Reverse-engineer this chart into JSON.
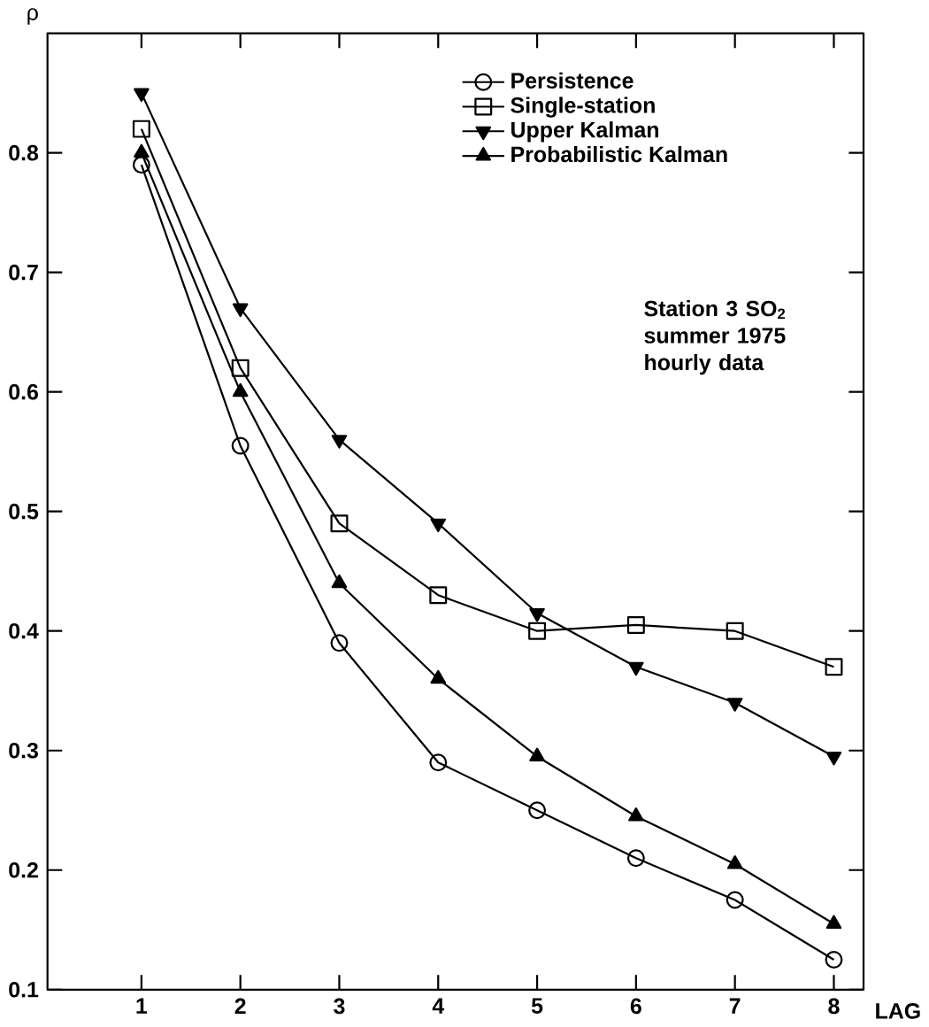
{
  "chart_data": {
    "type": "line",
    "xlabel": "LAG",
    "ylabel": "ρ",
    "x": [
      1,
      2,
      3,
      4,
      5,
      6,
      7,
      8
    ],
    "series": [
      {
        "name": "Persistence",
        "color": "#000000",
        "marker": "circle",
        "values": [
          0.79,
          0.555,
          0.39,
          0.29,
          0.25,
          0.21,
          0.175,
          0.125
        ]
      },
      {
        "name": "Single-station",
        "color": "#000000",
        "marker": "square",
        "values": [
          0.82,
          0.62,
          0.49,
          0.43,
          0.4,
          0.405,
          0.4,
          0.37
        ]
      },
      {
        "name": "Upper Kalman",
        "color": "#000000",
        "marker": "triangle down",
        "values": [
          0.85,
          0.67,
          0.56,
          0.49,
          0.415,
          0.37,
          0.34,
          0.295
        ]
      },
      {
        "name": "Probabilistic Kalman",
        "color": "#000000",
        "marker": "triangle",
        "values": [
          0.8,
          0.6,
          0.44,
          0.36,
          0.295,
          0.245,
          0.205,
          0.155
        ]
      }
    ],
    "xlim": [
      0.05,
      8.3
    ],
    "ylim": [
      0.1,
      0.9
    ],
    "xticks": [
      1,
      2,
      3,
      4,
      5,
      6,
      7,
      8
    ],
    "yticks": [
      0.1,
      0.2,
      0.3,
      0.4,
      0.5,
      0.6,
      0.7,
      0.8
    ],
    "legend": "top right",
    "grid": false,
    "line_style": "solid",
    "annotations": [
      "Station 3 SO$_{2}$ summer 1975 hourly data"
    ]
  }
}
